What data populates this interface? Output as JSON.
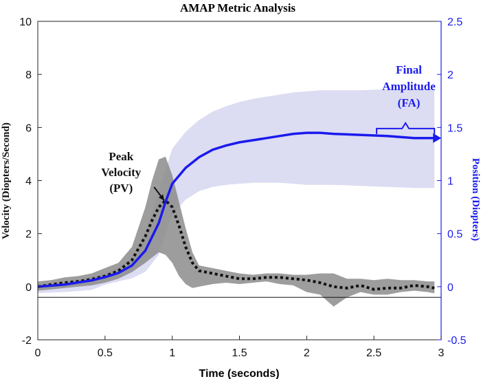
{
  "chart_data": {
    "type": "line",
    "title": "AMAP Metric Analysis",
    "xlabel": "Time (seconds)",
    "ylabel_left": "Velocity (Diopters/Second)",
    "ylabel_right": "Position (Diopters)",
    "xlim": [
      0,
      3
    ],
    "ylim_left": [
      -2,
      10
    ],
    "ylim_right": [
      -0.5,
      2.5
    ],
    "xticks": [
      "0",
      "0.5",
      "1",
      "1.5",
      "2",
      "2.5",
      "3"
    ],
    "yticks_left": [
      "-2",
      "0",
      "2",
      "4",
      "6",
      "8",
      "10"
    ],
    "yticks_right": [
      "-0.5",
      "0",
      "0.5",
      "1",
      "1.5",
      "2",
      "2.5"
    ],
    "reference_line_left_y": -0.4,
    "colors": {
      "position": "#1a1aee",
      "position_band": "#dcdcf2",
      "velocity": "#111111",
      "velocity_band": "#8c8c8c"
    },
    "series": [
      {
        "name": "Position (Diopters)",
        "axis": "right",
        "style": "solid",
        "x": [
          0,
          0.2,
          0.4,
          0.5,
          0.6,
          0.7,
          0.8,
          0.9,
          0.95,
          1.0,
          1.1,
          1.2,
          1.3,
          1.4,
          1.5,
          1.6,
          1.7,
          1.8,
          1.9,
          2.0,
          2.1,
          2.2,
          2.4,
          2.6,
          2.8,
          2.95
        ],
        "y": [
          0.0,
          0.02,
          0.06,
          0.09,
          0.13,
          0.2,
          0.34,
          0.6,
          0.8,
          0.97,
          1.12,
          1.22,
          1.29,
          1.33,
          1.36,
          1.38,
          1.4,
          1.42,
          1.44,
          1.45,
          1.45,
          1.44,
          1.43,
          1.42,
          1.4,
          1.4
        ],
        "band_upper": [
          0.0,
          0.04,
          0.09,
          0.13,
          0.18,
          0.28,
          0.5,
          0.9,
          1.1,
          1.3,
          1.46,
          1.57,
          1.65,
          1.7,
          1.74,
          1.77,
          1.79,
          1.81,
          1.83,
          1.84,
          1.85,
          1.85,
          1.85,
          1.86,
          1.86,
          1.86
        ],
        "band_lower": [
          -0.06,
          -0.05,
          -0.03,
          0.02,
          0.05,
          0.08,
          0.14,
          0.3,
          0.5,
          0.68,
          0.82,
          0.9,
          0.94,
          0.96,
          0.97,
          0.98,
          0.98,
          0.98,
          0.97,
          0.96,
          0.96,
          0.96,
          0.95,
          0.94,
          0.93,
          0.93
        ]
      },
      {
        "name": "Velocity (Diopters/Second)",
        "axis": "left",
        "style": "dotted",
        "x": [
          0,
          0.1,
          0.2,
          0.3,
          0.4,
          0.5,
          0.6,
          0.7,
          0.8,
          0.85,
          0.9,
          0.95,
          1.0,
          1.05,
          1.1,
          1.15,
          1.2,
          1.3,
          1.4,
          1.5,
          1.6,
          1.7,
          1.8,
          1.9,
          2.0,
          2.1,
          2.2,
          2.3,
          2.4,
          2.5,
          2.6,
          2.7,
          2.8,
          2.9,
          2.95
        ],
        "y": [
          0.0,
          0.08,
          0.15,
          0.2,
          0.28,
          0.4,
          0.6,
          1.0,
          1.9,
          2.5,
          3.0,
          3.25,
          3.0,
          2.3,
          1.5,
          0.9,
          0.6,
          0.5,
          0.4,
          0.3,
          0.3,
          0.35,
          0.35,
          0.3,
          0.25,
          0.15,
          0.0,
          -0.05,
          0.05,
          -0.1,
          -0.05,
          -0.05,
          0.05,
          0.0,
          -0.05
        ],
        "band_upper": [
          0.2,
          0.25,
          0.35,
          0.4,
          0.5,
          0.7,
          0.9,
          1.5,
          3.0,
          4.0,
          4.8,
          4.9,
          4.2,
          3.2,
          2.2,
          1.3,
          0.8,
          0.7,
          0.6,
          0.5,
          0.45,
          0.5,
          0.5,
          0.45,
          0.45,
          0.5,
          0.5,
          0.3,
          0.3,
          0.25,
          0.3,
          0.25,
          0.25,
          0.2,
          0.2
        ],
        "band_lower": [
          -0.15,
          -0.1,
          -0.05,
          0.0,
          0.05,
          0.15,
          0.3,
          0.55,
          0.9,
          1.1,
          1.3,
          1.2,
          0.9,
          0.4,
          0.1,
          -0.05,
          0.0,
          0.1,
          0.15,
          0.1,
          0.15,
          0.2,
          0.1,
          0.05,
          -0.2,
          -0.3,
          -0.75,
          -0.4,
          -0.2,
          -0.3,
          -0.3,
          -0.2,
          -0.15,
          -0.2,
          -0.25
        ]
      }
    ],
    "annotations": [
      {
        "lines": [
          "Peak",
          "Velocity",
          "(PV)"
        ],
        "target_x": 0.94,
        "target_y_left": 3.25
      },
      {
        "lines": [
          "Final",
          "Amplitude",
          "(FA)"
        ],
        "bracket_x": [
          2.52,
          2.95
        ],
        "bracket_y_right": 1.49
      }
    ]
  }
}
